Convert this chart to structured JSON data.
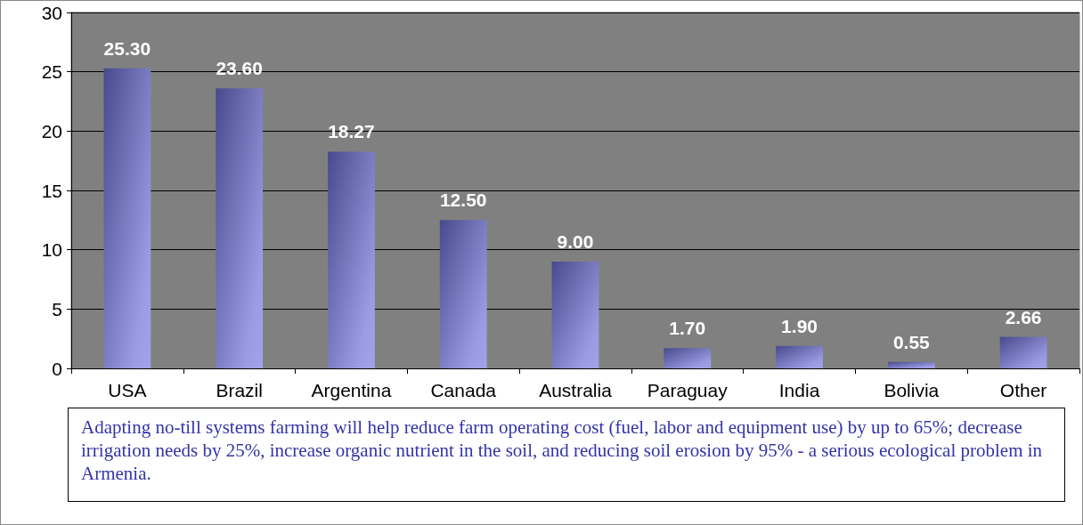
{
  "chart_data": {
    "type": "bar",
    "categories": [
      "USA",
      "Brazil",
      "Argentina",
      "Canada",
      "Australia",
      "Paraguay",
      "India",
      "Bolivia",
      "Other"
    ],
    "values": [
      25.3,
      23.6,
      18.27,
      12.5,
      9.0,
      1.7,
      1.9,
      0.55,
      2.66
    ],
    "value_labels": [
      "25.30",
      "23.60",
      "18.27",
      "12.50",
      "9.00",
      "1.70",
      "1.90",
      "0.55",
      "2.66"
    ],
    "color": "#7070d8",
    "ylim": [
      0,
      30
    ],
    "yticks": [
      0,
      5,
      10,
      15,
      20,
      25,
      30
    ],
    "grid": "y",
    "annotations": [
      "Adapting no-till systems farming will help reduce farm operating cost (fuel, labor and equipment use) by up to 65%; decrease irrigation needs by 25%, increase organic nutrient in the soil, and reducing soil erosion by 95% - a serious ecological problem in Armenia."
    ]
  }
}
